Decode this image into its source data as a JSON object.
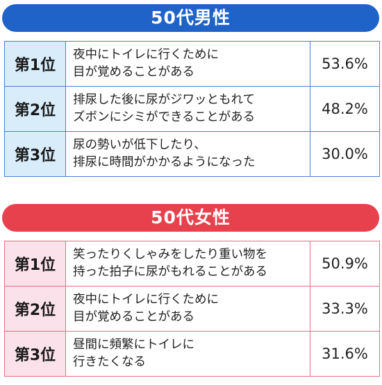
{
  "chart_data": [
    {
      "type": "table",
      "title": "50代男性",
      "rows": [
        {
          "rank": "第1位",
          "lines": [
            "夜中にトイレに行くために",
            "目が覚めることがある"
          ],
          "percent": "53.6%",
          "value": 53.6
        },
        {
          "rank": "第2位",
          "lines": [
            "排尿した後に尿がジワッともれて",
            "ズボンにシミができることがある"
          ],
          "percent": "48.2%",
          "value": 48.2
        },
        {
          "rank": "第3位",
          "lines": [
            "尿の勢いが低下したり、",
            "排尿に時間がかかるようになった"
          ],
          "percent": "30.0%",
          "value": 30.0
        }
      ]
    },
    {
      "type": "table",
      "title": "50代女性",
      "rows": [
        {
          "rank": "第1位",
          "lines": [
            "笑ったりくしゃみをしたり重い物を",
            "持った拍子に尿がもれることがある"
          ],
          "percent": "50.9%",
          "value": 50.9
        },
        {
          "rank": "第2位",
          "lines": [
            "夜中にトイレに行くために",
            "目が覚めることがある"
          ],
          "percent": "33.3%",
          "value": 33.3
        },
        {
          "rank": "第3位",
          "lines": [
            "昼間に頻繁にトイレに",
            "行きたくなる"
          ],
          "percent": "31.6%",
          "value": 31.6
        }
      ]
    }
  ],
  "colors": {
    "men_banner": "#1f63c9",
    "men_rank_bg": "#d8ecfa",
    "women_banner": "#e8414e",
    "women_rank_bg": "#fbe1ea"
  }
}
